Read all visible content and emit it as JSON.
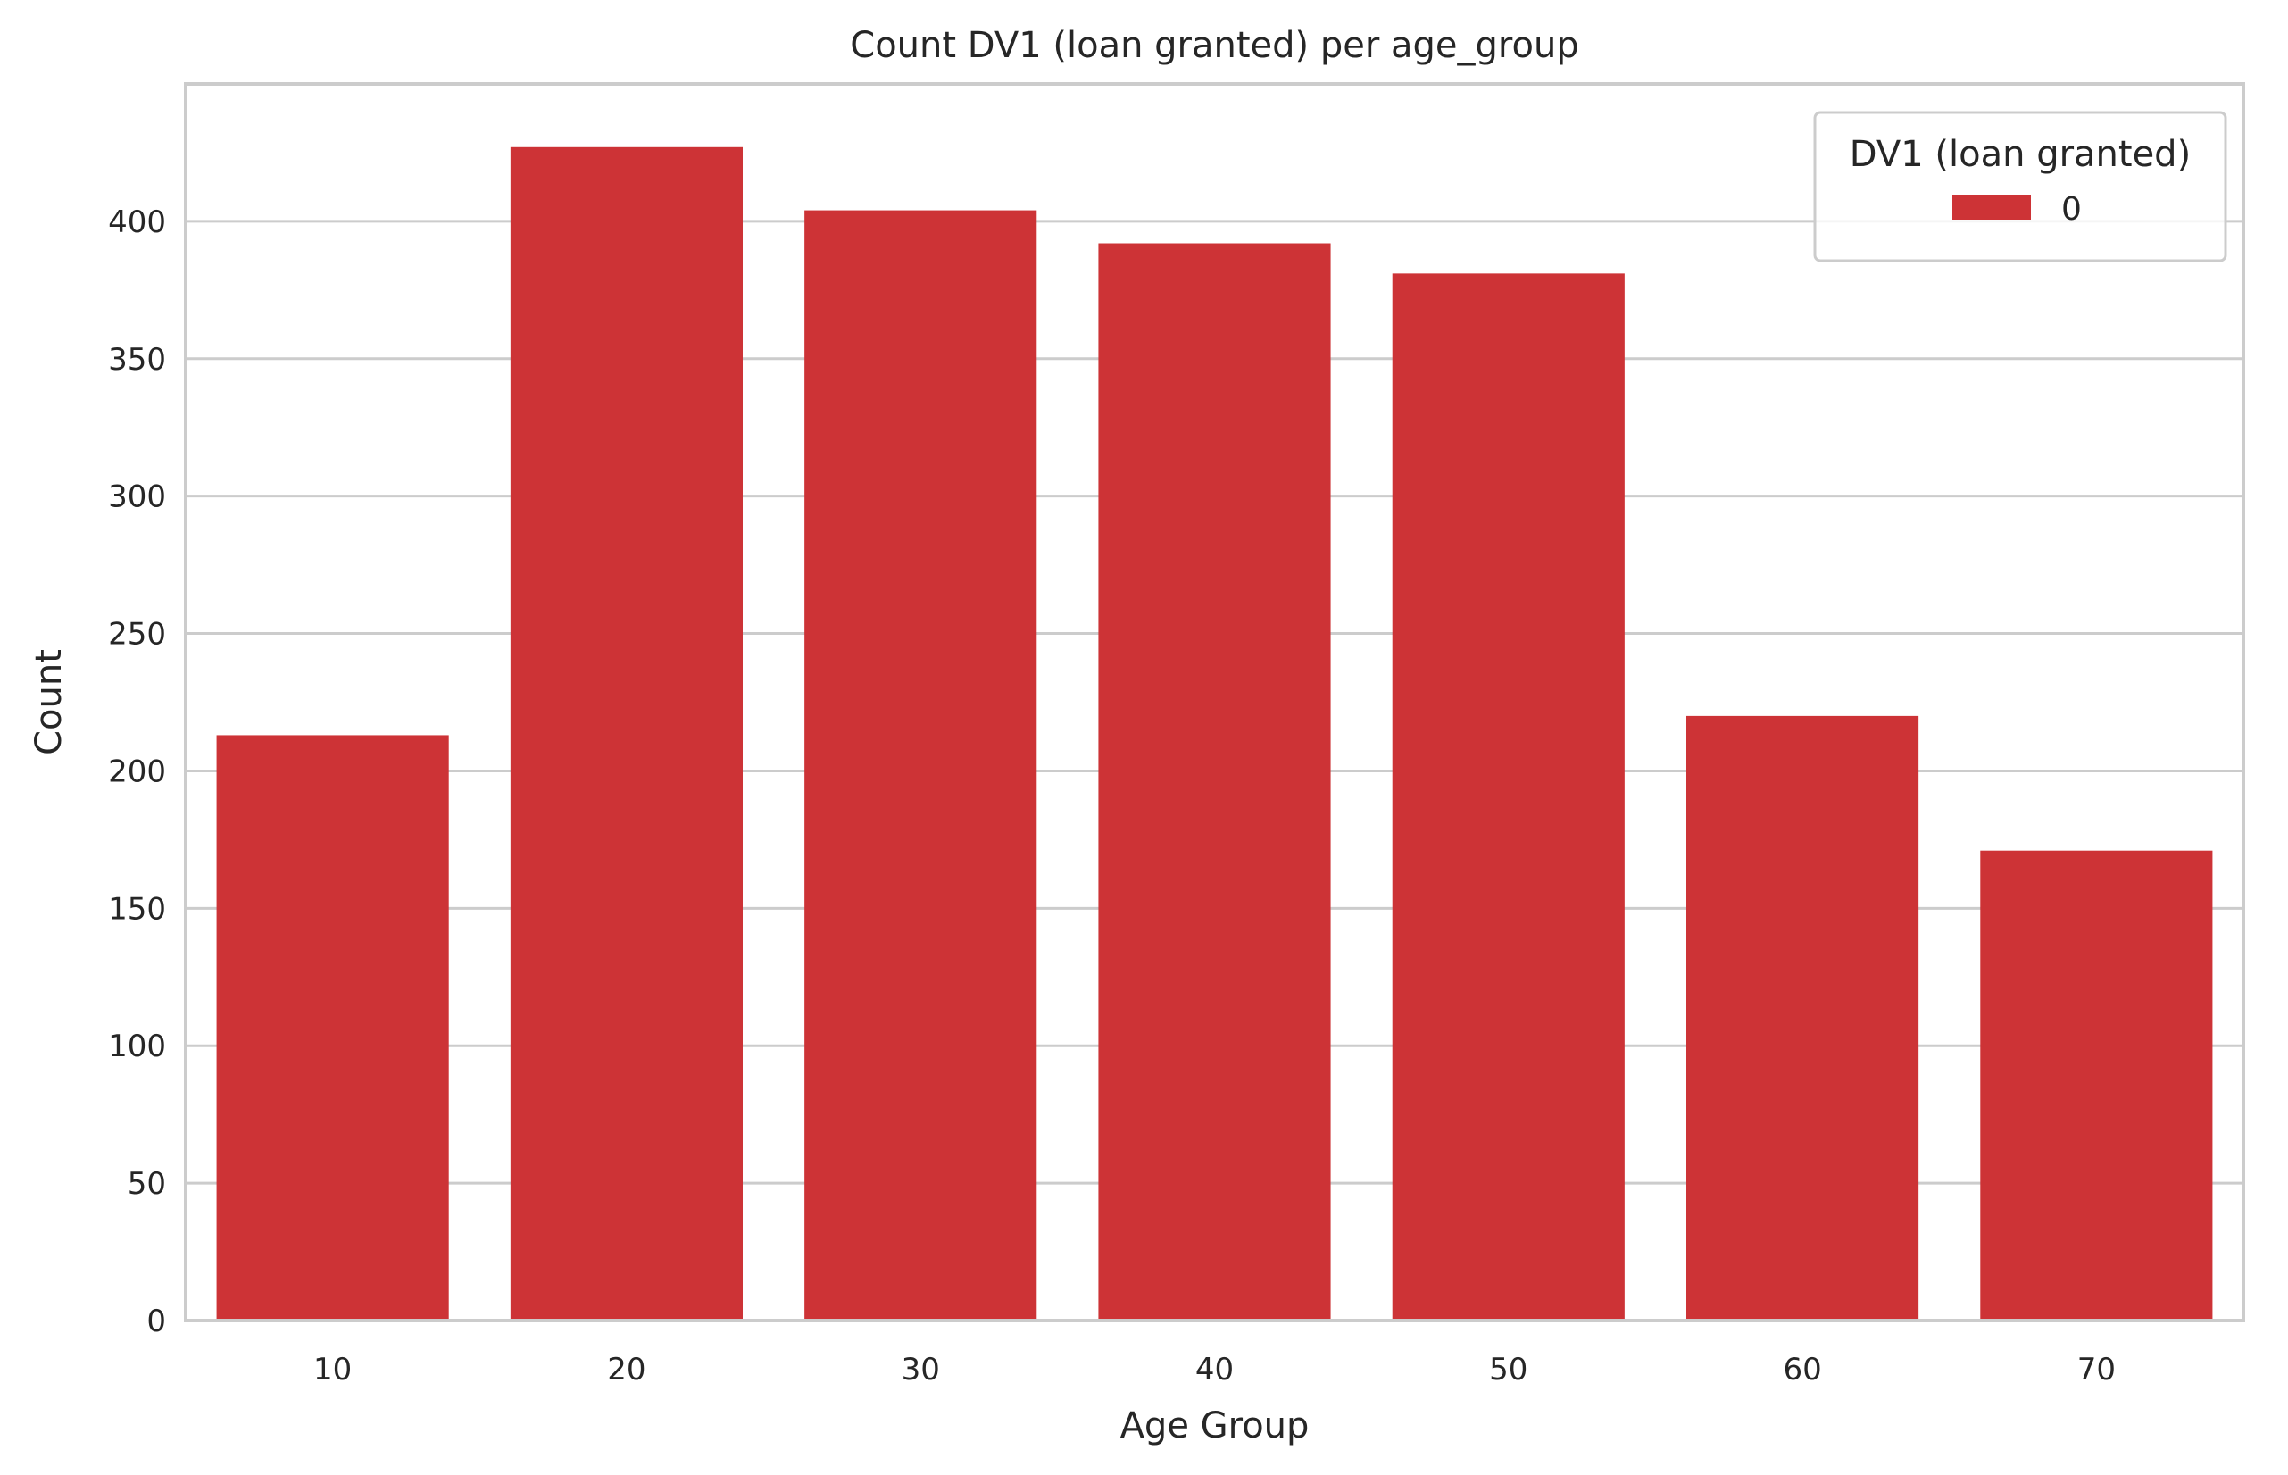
{
  "chart_data": {
    "type": "bar",
    "title": "Count DV1 (loan granted) per age_group",
    "xlabel": "Age Group",
    "ylabel": "Count",
    "categories": [
      "10",
      "20",
      "30",
      "40",
      "50",
      "60",
      "70"
    ],
    "series": [
      {
        "name": "0",
        "values": [
          213,
          427,
          404,
          392,
          381,
          220,
          171
        ],
        "color": "#cd3336"
      }
    ],
    "ylim": [
      0,
      450
    ],
    "yticks": [
      0,
      50,
      100,
      150,
      200,
      250,
      300,
      350,
      400
    ],
    "grid": true,
    "legend": {
      "title": "DV1 (loan granted)",
      "position": "top-right"
    }
  }
}
